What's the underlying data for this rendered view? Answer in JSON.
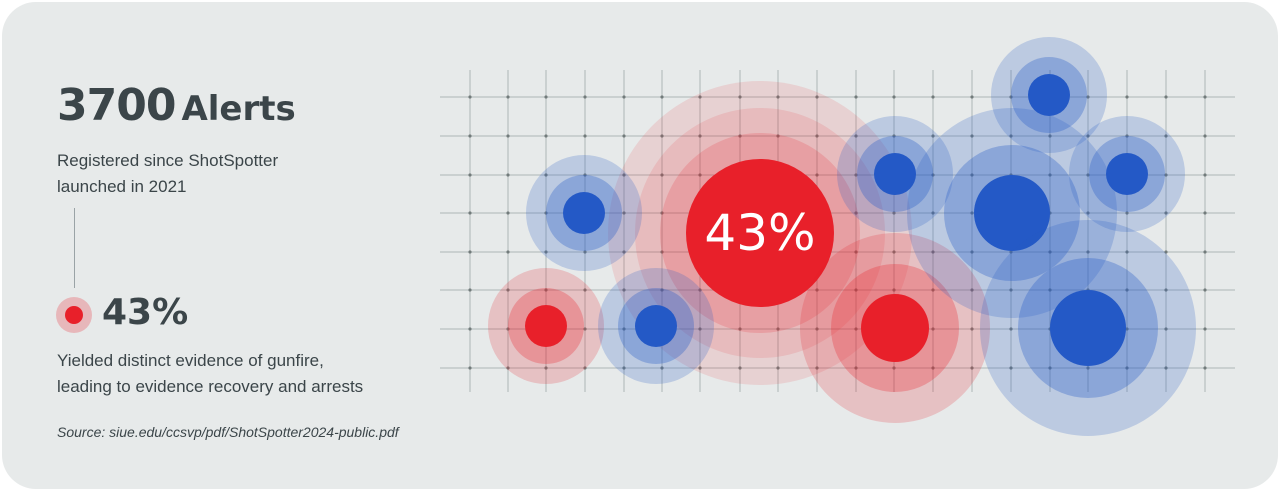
{
  "headline": {
    "value": "3700",
    "unit": "Alerts"
  },
  "subtitle_lines": [
    "Registered since ShotSpotter",
    "launched in 2021"
  ],
  "stat": {
    "value": "43%",
    "description_lines": [
      "Yielded distinct evidence of gunfire,",
      "leading to evidence recovery and arrests"
    ]
  },
  "source": "Source: siue.edu/ccsvp/pdf/ShotSpotter2024-public.pdf",
  "colors": {
    "background": "#e7eaea",
    "text": "#3b4549",
    "red": "#e8202a",
    "blue": "#2459c6"
  },
  "chart_data": {
    "type": "bubble",
    "center_label": "43%",
    "bubbles": [
      {
        "color": "red",
        "value": 43,
        "label": "43%"
      },
      {
        "color": "red"
      },
      {
        "color": "red"
      },
      {
        "color": "blue"
      },
      {
        "color": "blue"
      },
      {
        "color": "blue"
      },
      {
        "color": "blue"
      },
      {
        "color": "blue"
      },
      {
        "color": "blue"
      },
      {
        "color": "blue"
      }
    ]
  }
}
